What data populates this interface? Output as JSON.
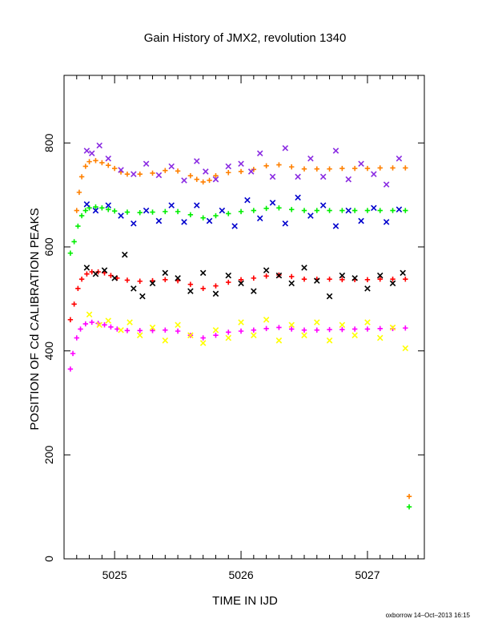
{
  "chart_data": {
    "type": "scatter",
    "title": "Gain History of JMX2, revolution 1340",
    "xlabel": "TIME IN IJD",
    "ylabel": "POSITION OF Cd CALIBRATION PEAKS",
    "footer": "oxborrow 14–Oct–2013 16:15",
    "xlim": [
      5024.6,
      5027.45
    ],
    "ylim": [
      0,
      930
    ],
    "x_ticks": [
      5025,
      5026,
      5027
    ],
    "y_ticks": [
      0,
      200,
      400,
      600,
      800
    ],
    "grid": false,
    "legend": "none",
    "series": [
      {
        "color": "#ff8000",
        "marker": "plus",
        "x": [
          5024.7,
          5024.72,
          5024.74,
          5024.77,
          5024.8,
          5024.85,
          5024.9,
          5024.95,
          5025.0,
          5025.05,
          5025.1,
          5025.2,
          5025.3,
          5025.4,
          5025.5,
          5025.6,
          5025.65,
          5025.7,
          5025.75,
          5025.8,
          5025.9,
          5026.0,
          5026.1,
          5026.2,
          5026.3,
          5026.4,
          5026.5,
          5026.6,
          5026.7,
          5026.8,
          5026.9,
          5027.0,
          5027.1,
          5027.2,
          5027.3,
          5027.33
        ],
        "y": [
          670,
          705,
          735,
          755,
          764,
          766,
          762,
          757,
          751,
          744,
          740,
          740,
          742,
          747,
          746,
          737,
          730,
          725,
          728,
          737,
          743,
          745,
          749,
          756,
          758,
          754,
          750,
          750,
          750,
          751,
          751,
          751,
          752,
          752,
          752,
          120
        ]
      },
      {
        "color": "#8a2be2",
        "marker": "cross",
        "x": [
          5024.78,
          5024.82,
          5024.88,
          5024.95,
          5025.05,
          5025.15,
          5025.25,
          5025.35,
          5025.45,
          5025.55,
          5025.65,
          5025.72,
          5025.8,
          5025.9,
          5026.0,
          5026.08,
          5026.15,
          5026.25,
          5026.35,
          5026.45,
          5026.55,
          5026.65,
          5026.75,
          5026.85,
          5026.95,
          5027.05,
          5027.15,
          5027.25
        ],
        "y": [
          785,
          780,
          795,
          770,
          748,
          740,
          760,
          738,
          755,
          728,
          765,
          745,
          730,
          755,
          760,
          745,
          780,
          735,
          790,
          735,
          770,
          735,
          785,
          730,
          760,
          740,
          720,
          770
        ]
      },
      {
        "color": "#00ee00",
        "marker": "plus",
        "x": [
          5024.65,
          5024.68,
          5024.71,
          5024.74,
          5024.77,
          5024.8,
          5024.85,
          5024.9,
          5024.95,
          5025.0,
          5025.1,
          5025.2,
          5025.3,
          5025.4,
          5025.5,
          5025.6,
          5025.7,
          5025.8,
          5025.9,
          5026.0,
          5026.1,
          5026.2,
          5026.3,
          5026.4,
          5026.5,
          5026.6,
          5026.7,
          5026.8,
          5026.9,
          5027.0,
          5027.1,
          5027.2,
          5027.3,
          5027.33
        ],
        "y": [
          588,
          610,
          640,
          660,
          670,
          675,
          677,
          675,
          672,
          669,
          667,
          666,
          667,
          668,
          668,
          662,
          656,
          660,
          664,
          668,
          670,
          674,
          675,
          672,
          670,
          670,
          670,
          670,
          670,
          670,
          670,
          670,
          670,
          100
        ]
      },
      {
        "color": "#0000cd",
        "marker": "cross",
        "x": [
          5024.78,
          5024.85,
          5024.95,
          5025.05,
          5025.15,
          5025.25,
          5025.35,
          5025.45,
          5025.55,
          5025.65,
          5025.75,
          5025.85,
          5025.95,
          5026.05,
          5026.15,
          5026.25,
          5026.35,
          5026.45,
          5026.55,
          5026.65,
          5026.75,
          5026.85,
          5026.95,
          5027.05,
          5027.15,
          5027.25
        ],
        "y": [
          682,
          670,
          680,
          660,
          645,
          670,
          650,
          680,
          648,
          680,
          650,
          670,
          640,
          690,
          655,
          685,
          645,
          695,
          660,
          680,
          640,
          670,
          650,
          675,
          648,
          672
        ]
      },
      {
        "color": "#ff0000",
        "marker": "plus",
        "x": [
          5024.65,
          5024.68,
          5024.71,
          5024.74,
          5024.78,
          5024.82,
          5024.87,
          5024.92,
          5024.97,
          5025.02,
          5025.1,
          5025.2,
          5025.3,
          5025.4,
          5025.5,
          5025.6,
          5025.7,
          5025.8,
          5025.9,
          5026.0,
          5026.1,
          5026.2,
          5026.3,
          5026.4,
          5026.5,
          5026.6,
          5026.7,
          5026.8,
          5026.9,
          5027.0,
          5027.1,
          5027.2,
          5027.3
        ],
        "y": [
          460,
          490,
          520,
          538,
          548,
          552,
          552,
          550,
          545,
          540,
          536,
          534,
          535,
          537,
          535,
          528,
          520,
          525,
          532,
          537,
          540,
          544,
          546,
          543,
          538,
          538,
          538,
          537,
          537,
          537,
          538,
          538,
          538
        ]
      },
      {
        "color": "#000000",
        "marker": "cross",
        "x": [
          5024.78,
          5024.85,
          5024.92,
          5025.0,
          5025.08,
          5025.15,
          5025.22,
          5025.3,
          5025.4,
          5025.5,
          5025.6,
          5025.7,
          5025.8,
          5025.9,
          5026.0,
          5026.1,
          5026.2,
          5026.3,
          5026.4,
          5026.5,
          5026.6,
          5026.7,
          5026.8,
          5026.9,
          5027.0,
          5027.1,
          5027.2,
          5027.28
        ],
        "y": [
          560,
          548,
          555,
          540,
          585,
          520,
          505,
          530,
          550,
          540,
          515,
          550,
          510,
          545,
          530,
          515,
          555,
          545,
          530,
          560,
          535,
          505,
          545,
          540,
          520,
          545,
          530,
          550
        ]
      },
      {
        "color": "#ff00ff",
        "marker": "plus",
        "x": [
          5024.65,
          5024.67,
          5024.7,
          5024.73,
          5024.77,
          5024.82,
          5024.87,
          5024.92,
          5024.97,
          5025.02,
          5025.1,
          5025.2,
          5025.3,
          5025.4,
          5025.5,
          5025.6,
          5025.7,
          5025.8,
          5025.9,
          5026.0,
          5026.1,
          5026.2,
          5026.3,
          5026.4,
          5026.5,
          5026.6,
          5026.7,
          5026.8,
          5026.9,
          5027.0,
          5027.1,
          5027.2,
          5027.3
        ],
        "y": [
          365,
          395,
          425,
          442,
          452,
          455,
          453,
          450,
          446,
          442,
          439,
          439,
          439,
          440,
          438,
          430,
          425,
          430,
          436,
          438,
          440,
          443,
          445,
          442,
          440,
          440,
          441,
          441,
          442,
          442,
          443,
          443,
          444
        ]
      },
      {
        "color": "#ffff00",
        "marker": "cross",
        "x": [
          5024.8,
          5024.88,
          5024.95,
          5025.05,
          5025.12,
          5025.2,
          5025.3,
          5025.4,
          5025.5,
          5025.6,
          5025.7,
          5025.8,
          5025.9,
          5026.0,
          5026.1,
          5026.2,
          5026.3,
          5026.4,
          5026.5,
          5026.6,
          5026.7,
          5026.8,
          5026.9,
          5027.0,
          5027.1,
          5027.2,
          5027.3
        ],
        "y": [
          470,
          450,
          458,
          440,
          455,
          430,
          445,
          420,
          450,
          430,
          415,
          440,
          425,
          455,
          430,
          460,
          420,
          450,
          430,
          455,
          420,
          450,
          430,
          455,
          425,
          445,
          405
        ]
      }
    ]
  }
}
